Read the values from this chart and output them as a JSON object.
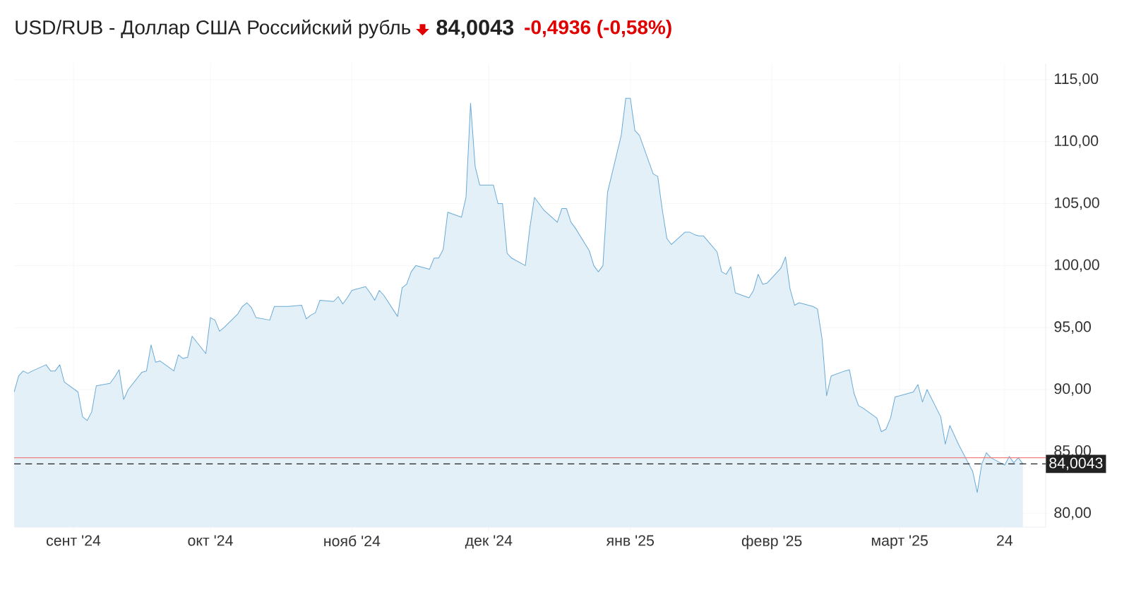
{
  "chart_data": {
    "type": "area",
    "title": "USD/RUB - Доллар США Российский рубль",
    "annotations": [
      "84,0043",
      "-0,4936 (-0,58%)"
    ],
    "x": [
      "2024-08-19",
      "2024-08-20",
      "2024-08-21",
      "2024-08-22",
      "2024-08-23",
      "2024-08-26",
      "2024-08-27",
      "2024-08-28",
      "2024-08-29",
      "2024-08-30",
      "2024-09-02",
      "2024-09-03",
      "2024-09-04",
      "2024-09-05",
      "2024-09-06",
      "2024-09-09",
      "2024-09-10",
      "2024-09-11",
      "2024-09-12",
      "2024-09-13",
      "2024-09-16",
      "2024-09-17",
      "2024-09-18",
      "2024-09-19",
      "2024-09-20",
      "2024-09-23",
      "2024-09-24",
      "2024-09-25",
      "2024-09-26",
      "2024-09-27",
      "2024-09-30",
      "2024-10-01",
      "2024-10-02",
      "2024-10-03",
      "2024-10-04",
      "2024-10-07",
      "2024-10-08",
      "2024-10-09",
      "2024-10-10",
      "2024-10-11",
      "2024-10-14",
      "2024-10-15",
      "2024-10-16",
      "2024-10-17",
      "2024-10-18",
      "2024-10-21",
      "2024-10-22",
      "2024-10-23",
      "2024-10-24",
      "2024-10-25",
      "2024-10-28",
      "2024-10-29",
      "2024-10-30",
      "2024-10-31",
      "2024-11-01",
      "2024-11-04",
      "2024-11-05",
      "2024-11-06",
      "2024-11-07",
      "2024-11-08",
      "2024-11-11",
      "2024-11-12",
      "2024-11-13",
      "2024-11-14",
      "2024-11-15",
      "2024-11-18",
      "2024-11-19",
      "2024-11-20",
      "2024-11-21",
      "2024-11-22",
      "2024-11-25",
      "2024-11-26",
      "2024-11-27",
      "2024-11-28",
      "2024-11-29",
      "2024-12-02",
      "2024-12-03",
      "2024-12-04",
      "2024-12-05",
      "2024-12-06",
      "2024-12-09",
      "2024-12-10",
      "2024-12-11",
      "2024-12-12",
      "2024-12-13",
      "2024-12-16",
      "2024-12-17",
      "2024-12-18",
      "2024-12-19",
      "2024-12-20",
      "2024-12-23",
      "2024-12-24",
      "2024-12-25",
      "2024-12-26",
      "2024-12-27",
      "2024-12-30",
      "2024-12-31",
      "2025-01-01",
      "2025-01-02",
      "2025-01-03",
      "2025-01-06",
      "2025-01-07",
      "2025-01-08",
      "2025-01-09",
      "2025-01-10",
      "2025-01-13",
      "2025-01-14",
      "2025-01-15",
      "2025-01-16",
      "2025-01-17",
      "2025-01-20",
      "2025-01-21",
      "2025-01-22",
      "2025-01-23",
      "2025-01-24",
      "2025-01-27",
      "2025-01-28",
      "2025-01-29",
      "2025-01-30",
      "2025-01-31",
      "2025-02-03",
      "2025-02-04",
      "2025-02-05",
      "2025-02-06",
      "2025-02-07",
      "2025-02-10",
      "2025-02-11",
      "2025-02-12",
      "2025-02-13",
      "2025-02-14",
      "2025-02-17",
      "2025-02-18",
      "2025-02-19",
      "2025-02-20",
      "2025-02-21",
      "2025-02-24",
      "2025-02-25",
      "2025-02-26",
      "2025-02-27",
      "2025-02-28",
      "2025-03-03",
      "2025-03-04",
      "2025-03-05",
      "2025-03-06",
      "2025-03-07",
      "2025-03-10",
      "2025-03-11",
      "2025-03-12",
      "2025-03-13",
      "2025-03-14",
      "2025-03-17",
      "2025-03-18",
      "2025-03-19",
      "2025-03-20",
      "2025-03-21",
      "2025-03-24",
      "2025-03-25",
      "2025-03-26",
      "2025-03-27",
      "2025-03-28"
    ],
    "series": [
      {
        "color": "#6aaad6",
        "values": [
          89.8,
          91.1,
          91.5,
          91.3,
          91.5,
          92.0,
          91.5,
          91.5,
          92.0,
          90.6,
          89.8,
          87.8,
          87.5,
          88.2,
          90.3,
          90.5,
          91.0,
          91.6,
          89.2,
          90.0,
          91.4,
          91.5,
          93.6,
          92.2,
          92.3,
          91.5,
          92.8,
          92.5,
          92.6,
          94.3,
          92.9,
          95.8,
          95.6,
          94.7,
          95.0,
          96.1,
          96.7,
          97.0,
          96.6,
          95.8,
          95.6,
          96.7,
          96.7,
          96.7,
          96.7,
          96.8,
          95.7,
          96.0,
          96.2,
          97.2,
          97.1,
          97.5,
          96.9,
          97.4,
          98.0,
          98.3,
          97.8,
          97.2,
          98.0,
          97.6,
          95.9,
          98.2,
          98.5,
          99.5,
          100.0,
          99.7,
          100.6,
          100.6,
          101.3,
          104.3,
          103.9,
          105.5,
          113.1,
          108.0,
          106.5,
          106.5,
          105.0,
          105.0,
          101.0,
          100.6,
          100.0,
          103.1,
          105.5,
          105.0,
          104.5,
          103.5,
          104.6,
          104.6,
          103.5,
          103.0,
          101.2,
          100.0,
          99.5,
          100.0,
          105.9,
          110.5,
          113.5,
          113.5,
          110.9,
          110.5,
          107.4,
          107.2,
          104.5,
          102.2,
          101.7,
          102.7,
          102.7,
          102.5,
          102.4,
          102.4,
          101.1,
          99.5,
          99.3,
          99.9,
          97.8,
          97.4,
          98.0,
          99.3,
          98.5,
          98.6,
          99.8,
          100.7,
          98.1,
          96.8,
          97.0,
          96.7,
          96.5,
          94.1,
          89.5,
          91.1,
          91.5,
          91.6,
          89.7,
          88.7,
          88.5,
          87.7,
          86.6,
          86.8,
          87.7,
          89.4,
          89.7,
          89.8,
          90.4,
          89.0,
          90.0,
          87.8,
          85.6,
          87.1,
          86.3,
          85.5,
          83.4,
          81.7,
          84.0,
          84.9,
          84.5,
          83.9,
          84.6,
          84.1,
          84.5,
          84.0
        ]
      }
    ],
    "xlim": [
      "2024-08-19",
      "2025-04-02"
    ],
    "xticks": [
      {
        "value": "2024-09-01",
        "label": "сент '24"
      },
      {
        "value": "2024-10-01",
        "label": "окт '24"
      },
      {
        "value": "2024-11-01",
        "label": "нояб '24"
      },
      {
        "value": "2024-12-01",
        "label": "дек '24"
      },
      {
        "value": "2025-01-01",
        "label": "янв '25"
      },
      {
        "value": "2025-02-01",
        "label": "февр '25"
      },
      {
        "value": "2025-03-01",
        "label": "март '25"
      },
      {
        "value": "2025-03-24",
        "label": "24"
      }
    ],
    "ylim": [
      78.9,
      116.3
    ],
    "yticks": [
      {
        "value": 80,
        "label": "80,00"
      },
      {
        "value": 85,
        "label": "85,00"
      },
      {
        "value": 90,
        "label": "90,00"
      },
      {
        "value": 95,
        "label": "95,00"
      },
      {
        "value": 100,
        "label": "100,00"
      },
      {
        "value": 105,
        "label": "105,00"
      },
      {
        "value": 110,
        "label": "110,00"
      },
      {
        "value": 115,
        "label": "115,00"
      }
    ],
    "ref_lines": [
      {
        "axis": "y",
        "value": 84.5,
        "color": "#f08080",
        "line_style": "solid"
      },
      {
        "axis": "y",
        "value": 84.0043,
        "label": "84,0043",
        "color": "#222222",
        "line_style": "dashed"
      }
    ],
    "grid": true
  }
}
